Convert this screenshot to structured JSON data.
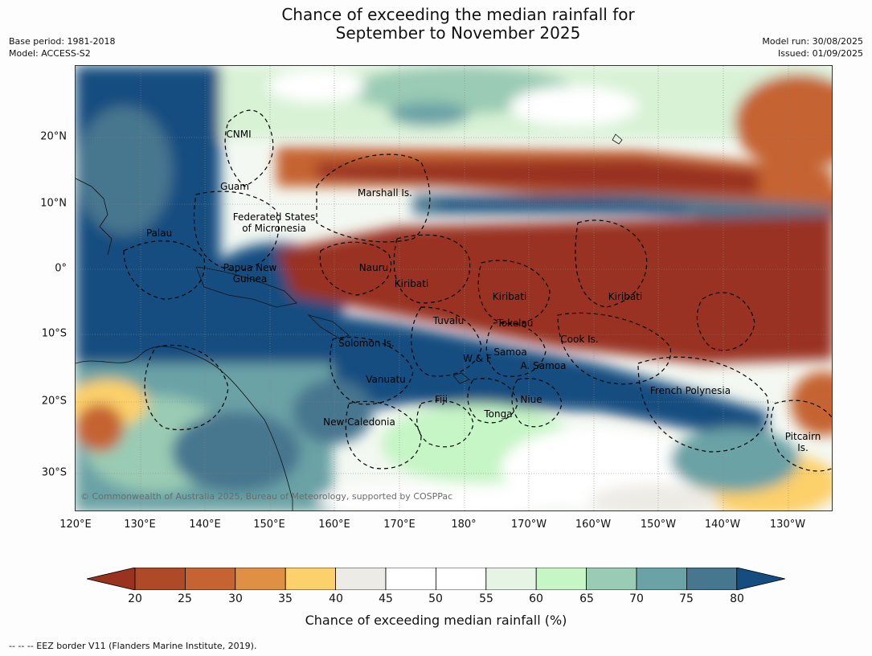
{
  "title": {
    "line1": "Chance of exceeding the median rainfall for",
    "line2": "September to November 2025"
  },
  "meta": {
    "base_period": "Base period: 1981-2018",
    "model": "Model: ACCESS-S2",
    "model_run": "Model run: 30/08/2025",
    "issued": "Issued: 01/09/2025"
  },
  "axes": {
    "lat_labels": [
      "20°N",
      "10°N",
      "0°",
      "10°S",
      "20°S",
      "30°S"
    ],
    "lon_labels": [
      "120°E",
      "130°E",
      "140°E",
      "150°E",
      "160°E",
      "170°E",
      "180°",
      "170°W",
      "160°W",
      "150°W",
      "140°W",
      "130°W"
    ]
  },
  "regions": {
    "cnmi": "CNMI",
    "guam": "Guam",
    "marshall": "Marshall Is.",
    "fsm_1": "Federated States",
    "fsm_2": "of Micronesia",
    "palau": "Palau",
    "png_1": "Papua New",
    "png_2": "Guinea",
    "nauru": "Nauru",
    "kiribati_w": "Kiribati",
    "kiribati_c": "Kiribati",
    "kiribati_e": "Kiribati",
    "tuvalu": "Tuvalu",
    "tokelau": "Tokelau",
    "solomon": "Solomon Is.",
    "samoa": "Samoa",
    "wallis": "W & F",
    "asamoa": "A. Samoa",
    "cook": "Cook Is.",
    "vanuatu": "Vanuatu",
    "fiji": "Fiji",
    "niue": "Niue",
    "tonga": "Tonga",
    "french_polynesia": "French Polynesia",
    "new_caledonia": "New Caledonia",
    "pitcairn_1": "Pitcairn",
    "pitcairn_2": "Is."
  },
  "copyright": "© Commonwealth of Australia 2025, Bureau of Meteorology, supported by COSPPac",
  "colorbar": {
    "ticks": [
      "20",
      "25",
      "30",
      "35",
      "40",
      "45",
      "50",
      "55",
      "60",
      "65",
      "70",
      "75",
      "80"
    ],
    "colors": [
      "#993320",
      "#ae4a27",
      "#c56432",
      "#e09045",
      "#fcd06a",
      "#edebe6",
      "#ffffff",
      "#ffffff",
      "#e6f4e6",
      "#c6f5c6",
      "#9acbb4",
      "#6aa2a6",
      "#47768f",
      "#154d80"
    ],
    "label": "Chance of exceeding median rainfall (%)"
  },
  "footnote": "--  --  -- EEZ border V11 (Flanders Marine Institute, 2019)."
}
